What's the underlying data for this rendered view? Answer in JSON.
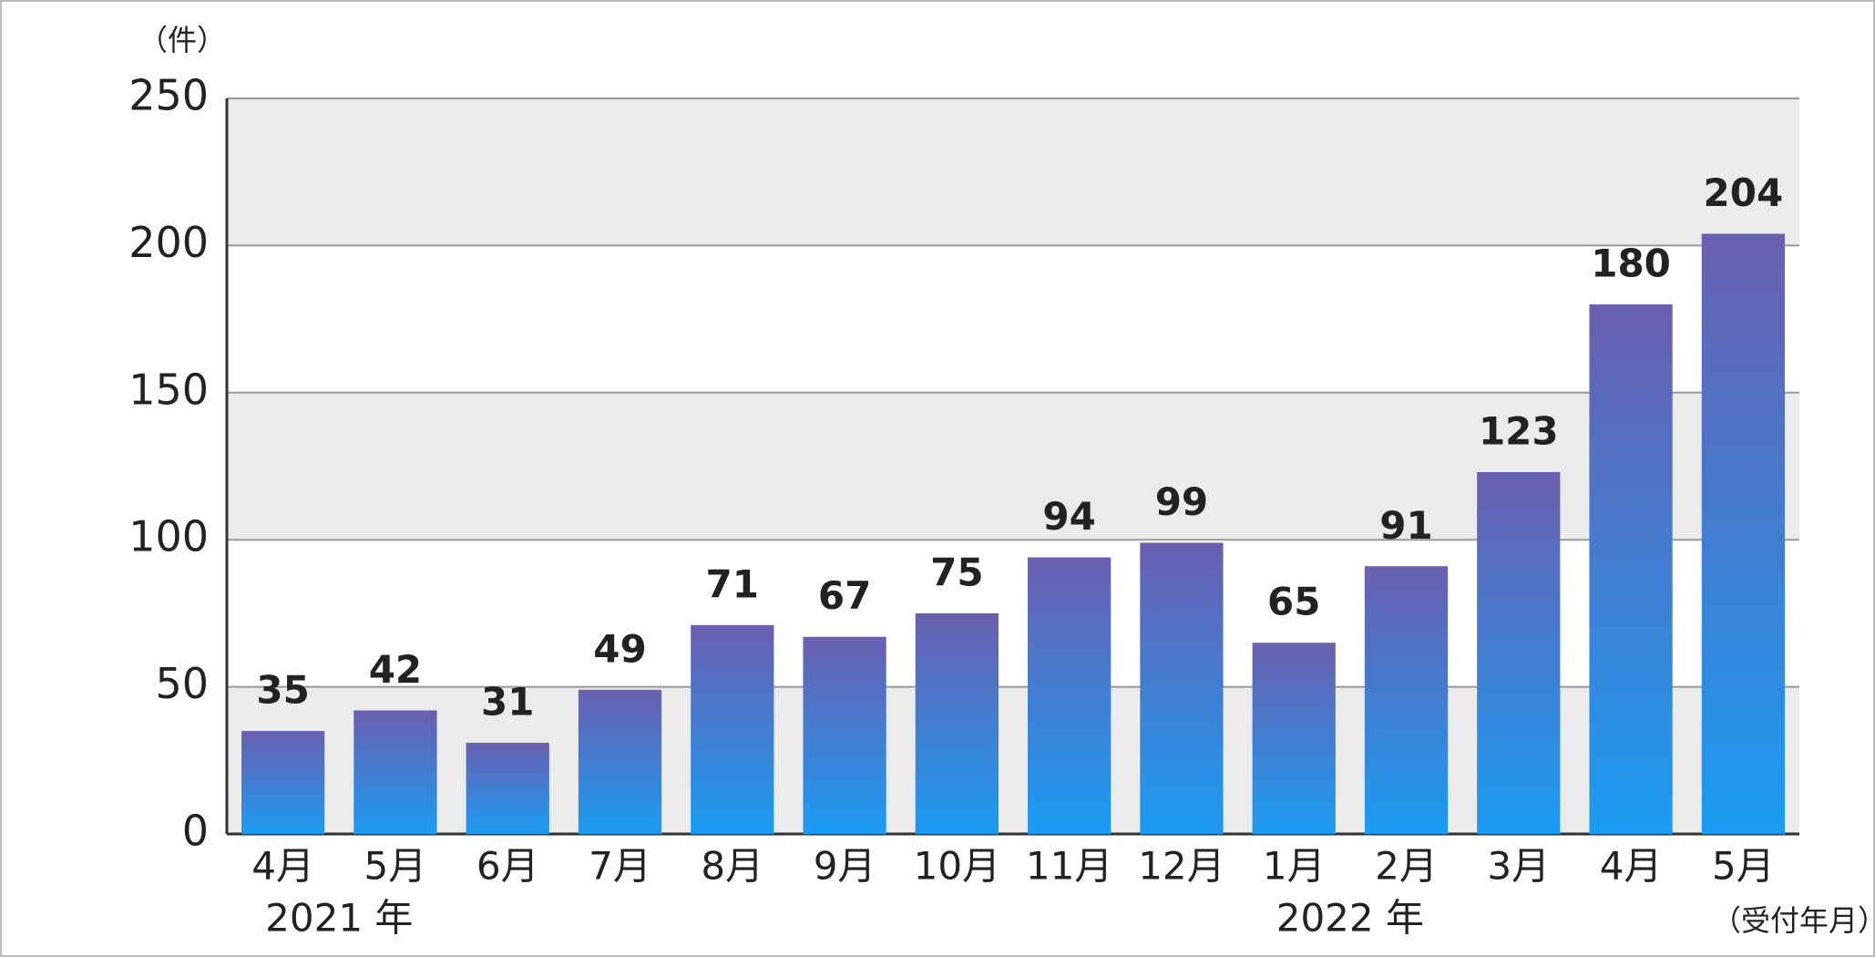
{
  "chart_data": {
    "type": "bar",
    "y_unit": "（件）",
    "x_unit": "（受付年月）",
    "year_labels": [
      "2021 年",
      "2022 年"
    ],
    "categories": [
      "4月",
      "5月",
      "6月",
      "7月",
      "8月",
      "9月",
      "10月",
      "11月",
      "12月",
      "1月",
      "2月",
      "3月",
      "4月",
      "5月"
    ],
    "values": [
      35,
      42,
      31,
      49,
      71,
      67,
      75,
      94,
      99,
      65,
      91,
      123,
      180,
      204
    ],
    "color": [
      "#6a5fb0",
      "#1a9cf2"
    ],
    "ylim": [
      0,
      250
    ],
    "yticks": [
      0,
      50,
      100,
      150,
      200,
      250
    ],
    "grid": true,
    "band_color": "#ebebeb"
  }
}
